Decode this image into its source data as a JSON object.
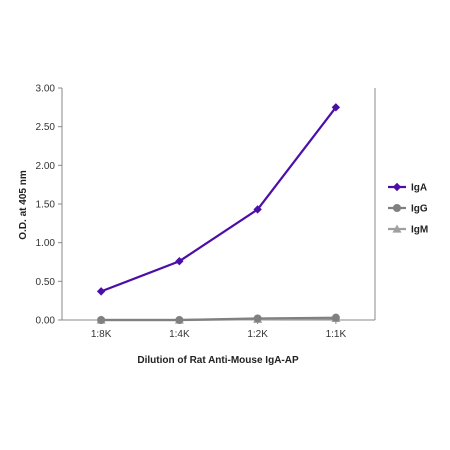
{
  "chart_data": {
    "type": "line",
    "xlabel": "Dilution of Rat Anti-Mouse IgA-AP",
    "ylabel": "O.D. at 405 nm",
    "categories": [
      "1:8K",
      "1:4K",
      "1:2K",
      "1:1K"
    ],
    "ylim": [
      0,
      3.0
    ],
    "yticks": [
      "0.00",
      "0.50",
      "1.00",
      "1.50",
      "2.00",
      "2.50",
      "3.00"
    ],
    "grid": false,
    "legend_position": "right",
    "series": [
      {
        "name": "IgA",
        "values": [
          0.37,
          0.76,
          1.43,
          2.75
        ],
        "color": "#4B0FA8",
        "marker": "diamond"
      },
      {
        "name": "IgG",
        "values": [
          0.0,
          0.0,
          0.02,
          0.03
        ],
        "color": "#808080",
        "marker": "circle"
      },
      {
        "name": "IgM",
        "values": [
          0.0,
          0.0,
          0.01,
          0.02
        ],
        "color": "#A0A0A0",
        "marker": "triangle"
      }
    ]
  }
}
